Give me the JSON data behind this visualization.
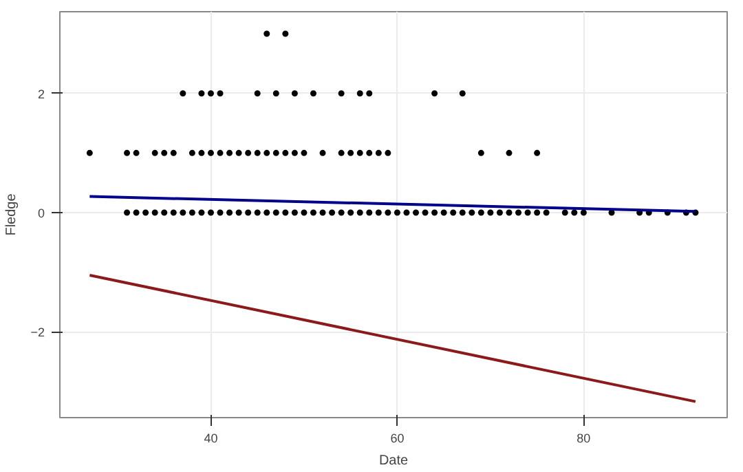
{
  "chart_data": {
    "type": "scatter",
    "xlabel": "Date",
    "ylabel": "Fledge",
    "xlim": [
      23.8,
      95.4
    ],
    "ylim": [
      -3.44,
      3.37
    ],
    "xticks": [
      40,
      60,
      80
    ],
    "yticks": [
      -2,
      0,
      2
    ],
    "grid": true,
    "series": [
      {
        "color": "#000000",
        "marker": "circle",
        "x": [
          31,
          32,
          33,
          34,
          35,
          36,
          37,
          38,
          39,
          40,
          41,
          42,
          43,
          44,
          45,
          46,
          47,
          48,
          49,
          50,
          51,
          52,
          53,
          54,
          55,
          56,
          57,
          58,
          59,
          60,
          61,
          62,
          63,
          64,
          65,
          66,
          67,
          68,
          69,
          70,
          71,
          72,
          73,
          74,
          75,
          76,
          78,
          79,
          80,
          83,
          86,
          87,
          89,
          91,
          92,
          27,
          31,
          32,
          34,
          35,
          36,
          38,
          39,
          40,
          41,
          42,
          43,
          44,
          45,
          46,
          47,
          48,
          49,
          50,
          52,
          54,
          55,
          56,
          57,
          58,
          59,
          69,
          72,
          75,
          37,
          39,
          40,
          41,
          45,
          47,
          49,
          51,
          54,
          56,
          57,
          64,
          67,
          46,
          48
        ],
        "values": [
          0,
          0,
          0,
          0,
          0,
          0,
          0,
          0,
          0,
          0,
          0,
          0,
          0,
          0,
          0,
          0,
          0,
          0,
          0,
          0,
          0,
          0,
          0,
          0,
          0,
          0,
          0,
          0,
          0,
          0,
          0,
          0,
          0,
          0,
          0,
          0,
          0,
          0,
          0,
          0,
          0,
          0,
          0,
          0,
          0,
          0,
          0,
          0,
          0,
          0,
          0,
          0,
          0,
          0,
          0,
          1,
          1,
          1,
          1,
          1,
          1,
          1,
          1,
          1,
          1,
          1,
          1,
          1,
          1,
          1,
          1,
          1,
          1,
          1,
          1,
          1,
          1,
          1,
          1,
          1,
          1,
          1,
          1,
          1,
          2,
          2,
          2,
          2,
          2,
          2,
          2,
          2,
          2,
          2,
          2,
          2,
          2,
          3,
          3
        ]
      },
      {
        "type": "line",
        "color": "#00008b",
        "x": [
          27,
          92
        ],
        "values": [
          0.27,
          0.02
        ]
      },
      {
        "type": "line",
        "color": "#8b1a1a",
        "x": [
          27,
          92
        ],
        "values": [
          -1.05,
          -3.17
        ]
      }
    ]
  }
}
